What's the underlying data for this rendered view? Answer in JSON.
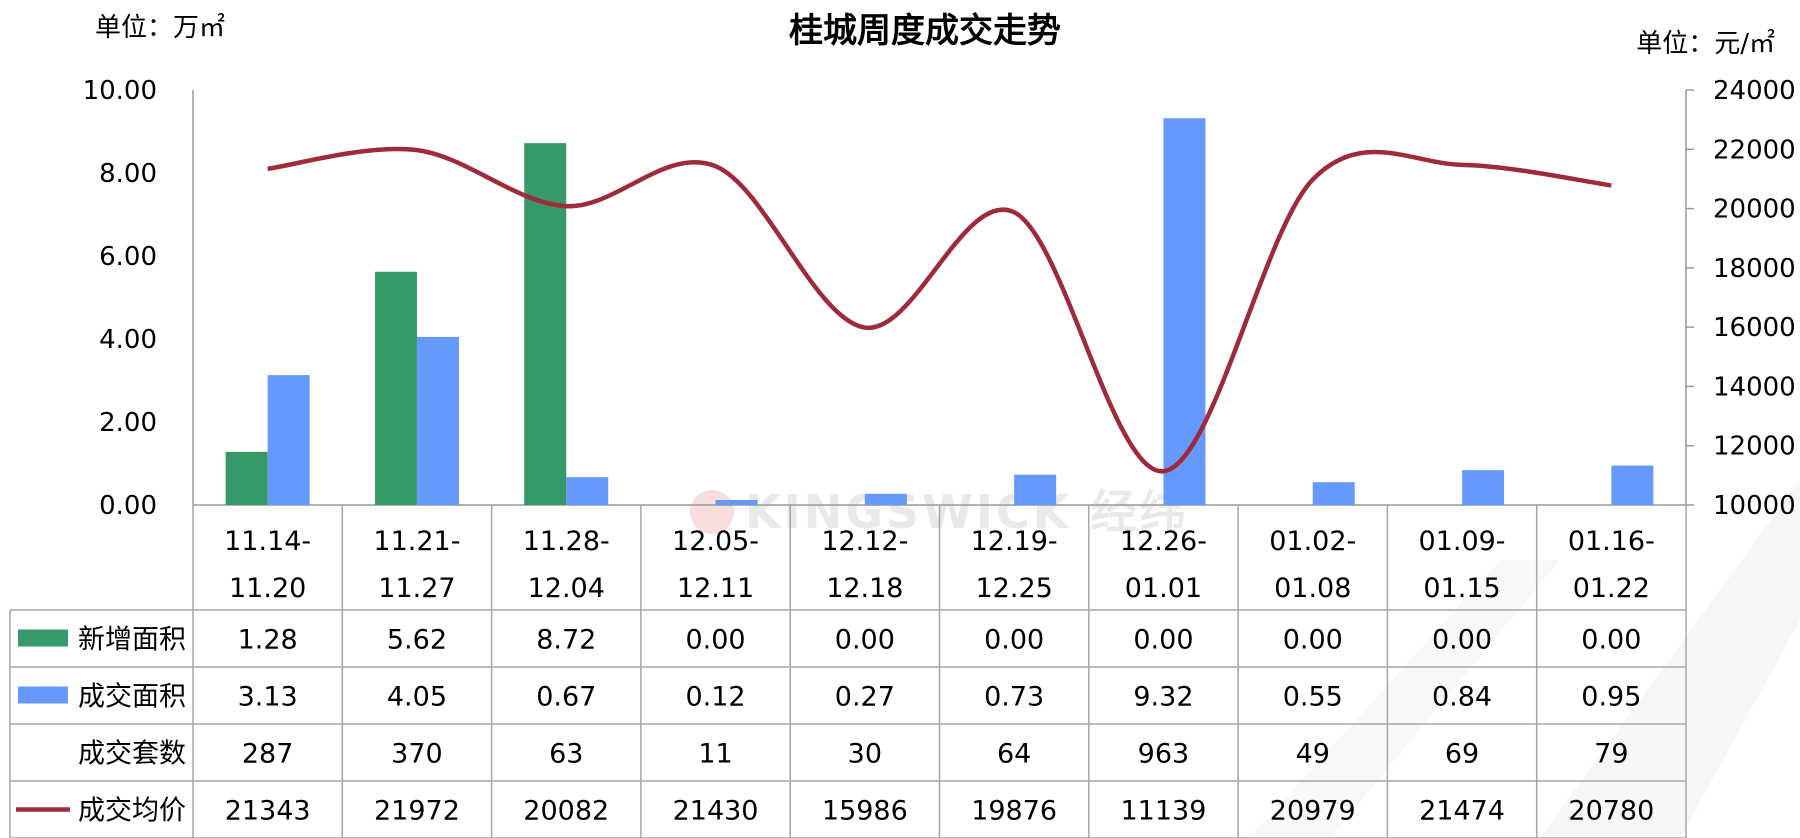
{
  "chart_data": {
    "type": "bar",
    "title": "桂城周度成交走势",
    "left_unit": "单位：万㎡",
    "right_unit": "单位：元/㎡",
    "watermark": "KINGSWICK 经纬",
    "categories": [
      [
        "11.14-",
        "11.20"
      ],
      [
        "11.21-",
        "11.27"
      ],
      [
        "11.28-",
        "12.04"
      ],
      [
        "12.05-",
        "12.11"
      ],
      [
        "12.12-",
        "12.18"
      ],
      [
        "12.19-",
        "12.25"
      ],
      [
        "12.26-",
        "01.01"
      ],
      [
        "01.02-",
        "01.08"
      ],
      [
        "01.09-",
        "01.15"
      ],
      [
        "01.16-",
        "01.22"
      ]
    ],
    "y_left": {
      "min": 0,
      "max": 10,
      "ticks": [
        "0.00",
        "2.00",
        "4.00",
        "6.00",
        "8.00",
        "10.00"
      ]
    },
    "y_right": {
      "min": 10000,
      "max": 24000,
      "ticks": [
        "10000",
        "12000",
        "14000",
        "16000",
        "18000",
        "20000",
        "22000",
        "24000"
      ]
    },
    "series": [
      {
        "name": "新增面积",
        "type": "bar",
        "axis": "left",
        "color": "#359a68",
        "values": [
          1.28,
          5.62,
          8.72,
          0.0,
          0.0,
          0.0,
          0.0,
          0.0,
          0.0,
          0.0
        ],
        "labels": [
          "1.28",
          "5.62",
          "8.72",
          "0.00",
          "0.00",
          "0.00",
          "0.00",
          "0.00",
          "0.00",
          "0.00"
        ]
      },
      {
        "name": "成交面积",
        "type": "bar",
        "axis": "left",
        "color": "#6699ff",
        "values": [
          3.13,
          4.05,
          0.67,
          0.12,
          0.27,
          0.73,
          9.32,
          0.55,
          0.84,
          0.95
        ],
        "labels": [
          "3.13",
          "4.05",
          "0.67",
          "0.12",
          "0.27",
          "0.73",
          "9.32",
          "0.55",
          "0.84",
          "0.95"
        ]
      },
      {
        "name": "成交套数",
        "type": "table-only",
        "values": [
          287,
          370,
          63,
          11,
          30,
          64,
          963,
          49,
          69,
          79
        ],
        "labels": [
          "287",
          "370",
          "63",
          "11",
          "30",
          "64",
          "963",
          "49",
          "69",
          "79"
        ]
      },
      {
        "name": "成交均价",
        "type": "line",
        "axis": "right",
        "color": "#9e2a3a",
        "values": [
          21343,
          21972,
          20082,
          21430,
          15986,
          19876,
          11139,
          20979,
          21474,
          20780
        ],
        "labels": [
          "21343",
          "21972",
          "20082",
          "21430",
          "15986",
          "19876",
          "11139",
          "20979",
          "21474",
          "20780"
        ]
      }
    ]
  }
}
